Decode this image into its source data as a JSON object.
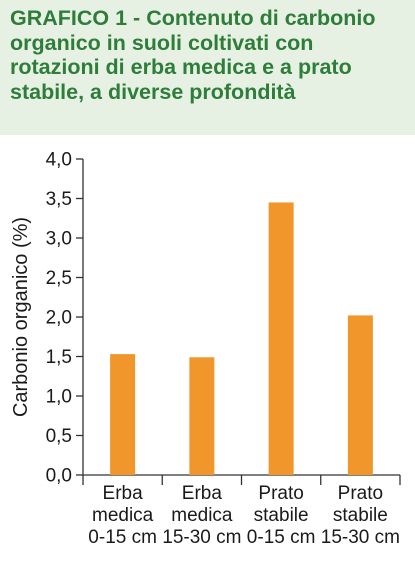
{
  "title": {
    "prefix": "GRAFICO 1 -",
    "text": "Contenuto di carbonio organico in suoli coltivati con rotazioni di erba medica e a prato stabile, a diverse profondità"
  },
  "colors": {
    "title_bg": "#e7f1e3",
    "title_text": "#2e7d3a",
    "bar": "#f0962a",
    "axis": "#333333"
  },
  "chart_data": {
    "type": "bar",
    "title": "GRAFICO 1 - Contenuto di carbonio organico in suoli coltivati con rotazioni di erba medica e a prato stabile, a diverse profondità",
    "xlabel": "",
    "ylabel": "Carbonio organico (%)",
    "ylim": [
      0,
      4
    ],
    "yticks": [
      "0,0",
      "0,5",
      "1,0",
      "1,5",
      "2,0",
      "2,5",
      "3,0",
      "3,5",
      "4,0"
    ],
    "categories": [
      [
        "Erba",
        "medica",
        "0-15 cm"
      ],
      [
        "Erba",
        "medica",
        "15-30 cm"
      ],
      [
        "Prato",
        "stabile",
        "0-15 cm"
      ],
      [
        "Prato",
        "stabile",
        "15-30 cm"
      ]
    ],
    "values": [
      1.53,
      1.49,
      3.45,
      2.02
    ],
    "grid": false,
    "legend": "none"
  }
}
